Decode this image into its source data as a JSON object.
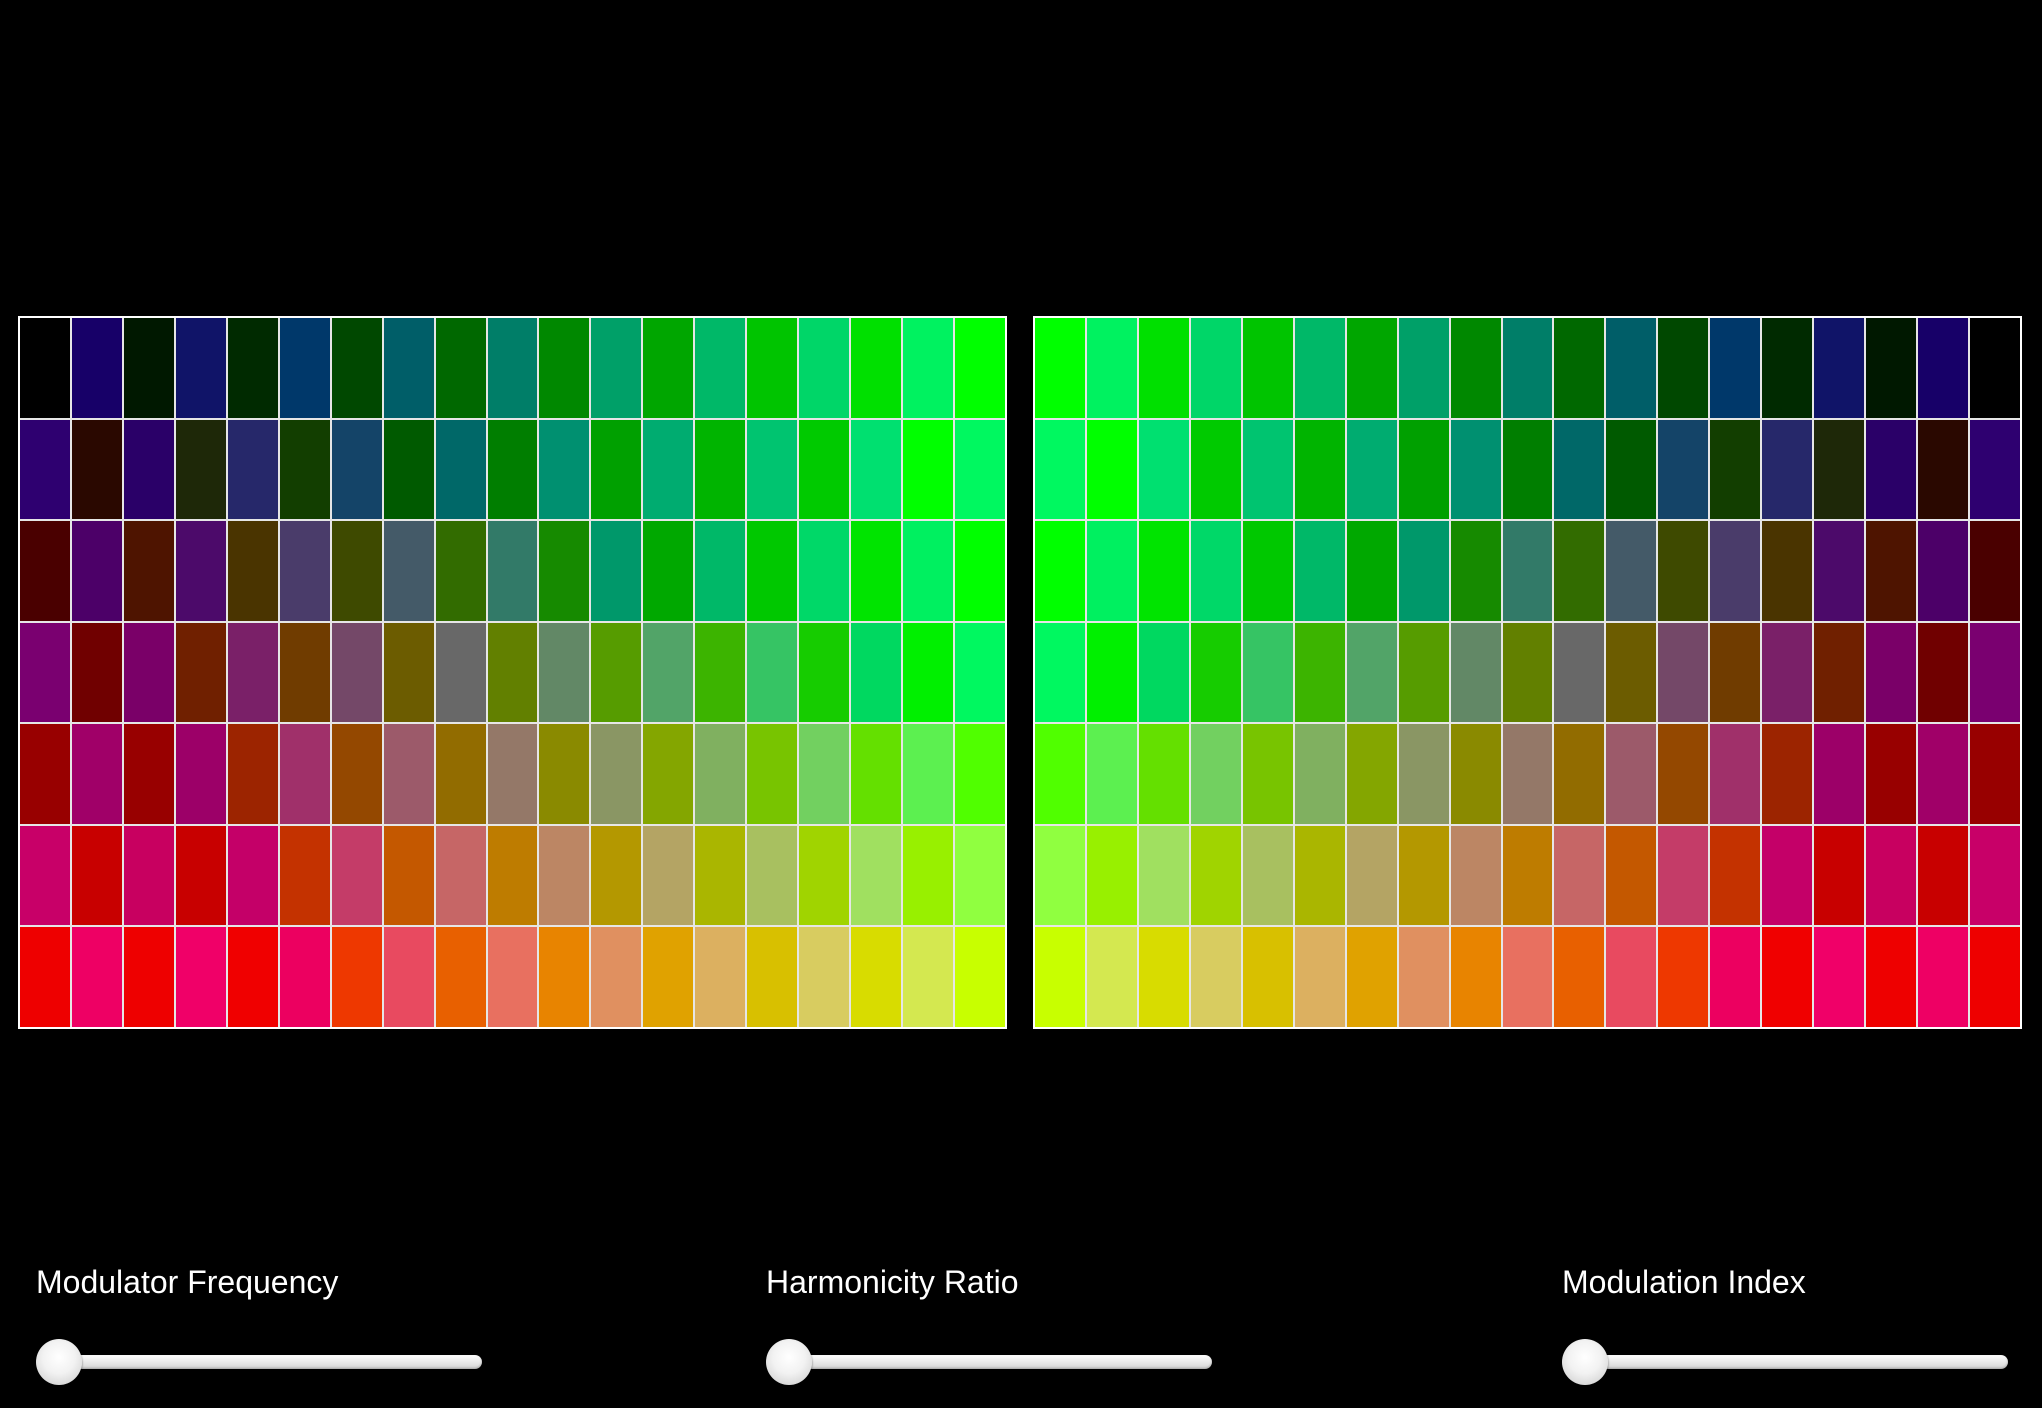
{
  "controls": {
    "modulator_frequency": {
      "label": "Modulator Frequency",
      "value": 0
    },
    "harmonicity_ratio": {
      "label": "Harmonicity Ratio",
      "value": 0
    },
    "modulation_index": {
      "label": "Modulation Index",
      "value": 0
    }
  },
  "grids": {
    "left": [
      [
        "#000000",
        "#170068",
        "#001800",
        "#101468",
        "#002a00",
        "#00386a",
        "#004800",
        "#005e68",
        "#006800",
        "#007e68",
        "#008800",
        "#00a068",
        "#00a600",
        "#00b868",
        "#00c400",
        "#00d668",
        "#00e000",
        "#00f260",
        "#00ff00"
      ],
      [
        "#2e0070",
        "#2a0800",
        "#2a0068",
        "#1e2808",
        "#26286a",
        "#123e00",
        "#144468",
        "#005a00",
        "#006868",
        "#007e00",
        "#009070",
        "#00a000",
        "#00ac70",
        "#00b400",
        "#00c470",
        "#00ca00",
        "#00e070",
        "#00ff00",
        "#00f860"
      ],
      [
        "#4a0000",
        "#4c0068",
        "#4e1400",
        "#4c0a6a",
        "#4a3400",
        "#4a3c6a",
        "#3e4a00",
        "#445a68",
        "#326c00",
        "#327a68",
        "#168a00",
        "#00986a",
        "#00a800",
        "#00b868",
        "#00c800",
        "#00d868",
        "#00e400",
        "#00f060",
        "#00ff00"
      ],
      [
        "#7a0070",
        "#700000",
        "#7a0068",
        "#702000",
        "#7a2068",
        "#703c00",
        "#744868",
        "#6c5c00",
        "#686868",
        "#628000",
        "#628866",
        "#569c00",
        "#52a468",
        "#3cb400",
        "#36c464",
        "#16cc00",
        "#00d860",
        "#00f000",
        "#00f860"
      ],
      [
        "#980000",
        "#a00068",
        "#980000",
        "#9c0068",
        "#9c2400",
        "#a0306a",
        "#944800",
        "#9c5a6a",
        "#926c00",
        "#947868",
        "#8a8a00",
        "#8a9664",
        "#84a600",
        "#80b060",
        "#78c400",
        "#72d060",
        "#64e000",
        "#5cf050",
        "#50ff00"
      ],
      [
        "#c80068",
        "#c80000",
        "#c80060",
        "#c80000",
        "#c40068",
        "#c43200",
        "#c43c68",
        "#c45800",
        "#c66666",
        "#be7c00",
        "#bc8664",
        "#b49800",
        "#b4a464",
        "#aab600",
        "#a8c060",
        "#a0d400",
        "#a0e060",
        "#98f000",
        "#90ff40"
      ],
      [
        "#ee0000",
        "#ee0064",
        "#ee0000",
        "#f00068",
        "#f00000",
        "#ec0060",
        "#ee3800",
        "#e84a60",
        "#e86000",
        "#e87060",
        "#e88400",
        "#e09060",
        "#e0a200",
        "#dcb060",
        "#d8c000",
        "#d8cc60",
        "#d8dc00",
        "#d4e850",
        "#c8ff00"
      ]
    ],
    "right": [
      [
        "#00ff00",
        "#00f260",
        "#00e000",
        "#00d668",
        "#00c400",
        "#00b868",
        "#00a600",
        "#00a068",
        "#008800",
        "#007e68",
        "#006800",
        "#005e68",
        "#004800",
        "#00386a",
        "#002a00",
        "#101468",
        "#001800",
        "#170068",
        "#000000"
      ],
      [
        "#00f860",
        "#00ff00",
        "#00e070",
        "#00ca00",
        "#00c470",
        "#00b400",
        "#00ac70",
        "#00a000",
        "#009070",
        "#007e00",
        "#006868",
        "#005a00",
        "#144468",
        "#123e00",
        "#26286a",
        "#1e2808",
        "#2a0068",
        "#2a0800",
        "#2e0070"
      ],
      [
        "#00ff00",
        "#00f060",
        "#00e400",
        "#00d868",
        "#00c800",
        "#00b868",
        "#00a800",
        "#00986a",
        "#168a00",
        "#327a68",
        "#326c00",
        "#445a68",
        "#3e4a00",
        "#4a3c6a",
        "#4a3400",
        "#4c0a6a",
        "#4e1400",
        "#4c0068",
        "#4a0000"
      ],
      [
        "#00f860",
        "#00f000",
        "#00d860",
        "#16cc00",
        "#36c464",
        "#3cb400",
        "#52a468",
        "#569c00",
        "#628866",
        "#628000",
        "#686868",
        "#6c5c00",
        "#744868",
        "#703c00",
        "#7a2068",
        "#702000",
        "#7a0068",
        "#700000",
        "#7a0070"
      ],
      [
        "#50ff00",
        "#5cf050",
        "#64e000",
        "#72d060",
        "#78c400",
        "#80b060",
        "#84a600",
        "#8a9664",
        "#8a8a00",
        "#947868",
        "#926c00",
        "#9c5a6a",
        "#944800",
        "#a0306a",
        "#9c2400",
        "#9c0068",
        "#980000",
        "#a00068",
        "#980000"
      ],
      [
        "#90ff40",
        "#98f000",
        "#a0e060",
        "#a0d400",
        "#a8c060",
        "#aab600",
        "#b4a464",
        "#b49800",
        "#bc8664",
        "#be7c00",
        "#c66666",
        "#c45800",
        "#c43c68",
        "#c43200",
        "#c40068",
        "#c80000",
        "#c80060",
        "#c80000",
        "#c80068"
      ],
      [
        "#c8ff00",
        "#d4e850",
        "#d8dc00",
        "#d8cc60",
        "#d8c000",
        "#dcb060",
        "#e0a200",
        "#e09060",
        "#e88400",
        "#e87060",
        "#e86000",
        "#e84a60",
        "#ee3800",
        "#ec0060",
        "#f00000",
        "#f00068",
        "#ee0000",
        "#ee0064",
        "#ee0000"
      ]
    ]
  }
}
